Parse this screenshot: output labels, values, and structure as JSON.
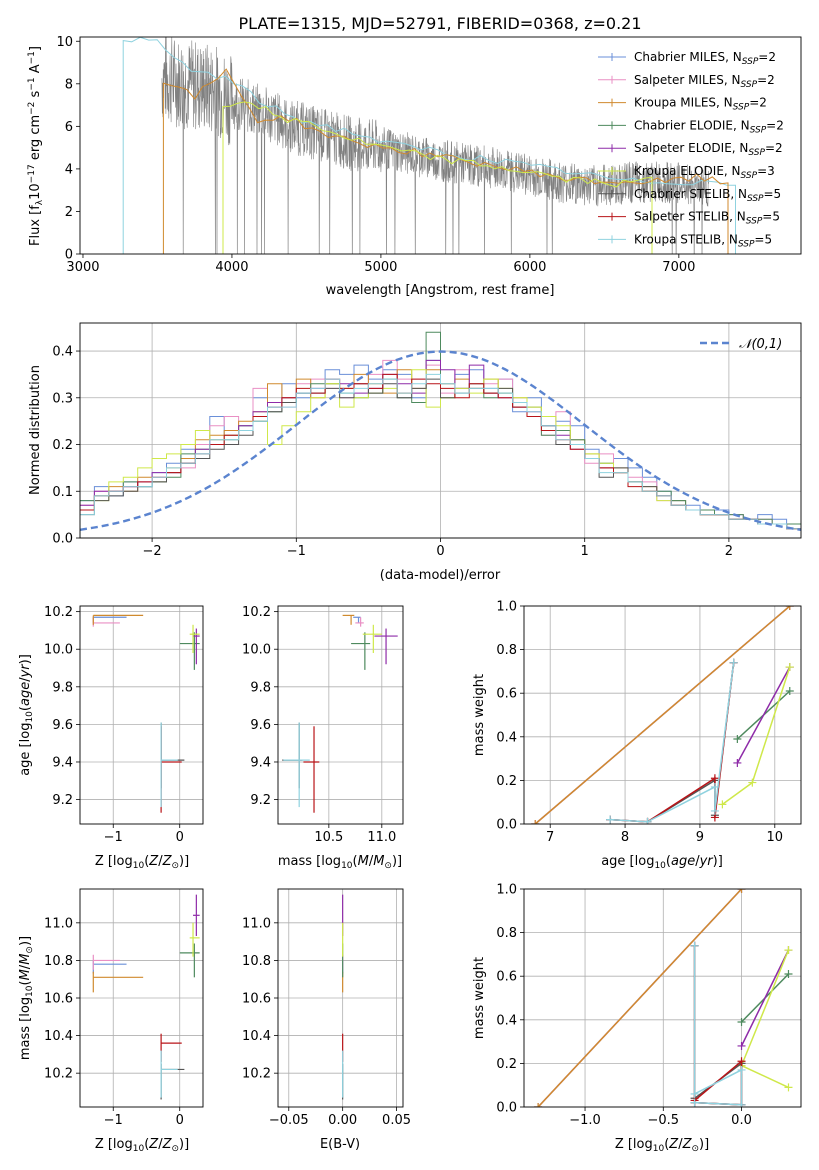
{
  "figure_title": "PLATE=1315, MJD=52791, FIBERID=0368, z=0.21",
  "colors": {
    "Chabrier MILES": "#6a8fd8",
    "Salpeter MILES": "#e98fc4",
    "Kroupa MILES": "#d08a2e",
    "Chabrier ELODIE": "#4e8a5e",
    "Salpeter ELODIE": "#8e2ba8",
    "Kroupa ELODIE": "#cfe84a",
    "Chabrier STELIB": "#555555",
    "Salpeter STELIB": "#b81418",
    "Kroupa STELIB": "#8fd2df",
    "data": "#808080",
    "gaussian": "#5b84cf",
    "grid": "#b0b0b0"
  },
  "chart_data": [
    {
      "type": "line",
      "panel": "spectrum",
      "title": "PLATE=1315, MJD=52791, FIBERID=0368, z=0.21",
      "xlabel": "wavelength [Angstrom, rest frame]",
      "ylabel": "Flux [f_λ10^-17 erg cm^-2 s^-1 A^-1]",
      "xlim": [
        2980,
        7820
      ],
      "ylim": [
        0,
        10.2
      ],
      "xticks": [
        3000,
        4000,
        5000,
        6000,
        7000
      ],
      "yticks": [
        0,
        2,
        4,
        6,
        8,
        10
      ],
      "legend_position": "top-right",
      "legend": [
        "Chabrier MILES, N_SSP=2",
        "Salpeter MILES, N_SSP=2",
        "Kroupa MILES, N_SSP=2",
        "Chabrier ELODIE, N_SSP=2",
        "Salpeter ELODIE, N_SSP=2",
        "Kroupa ELODIE, N_SSP=3",
        "Chabrier STELIB, N_SSP=5",
        "Salpeter STELIB, N_SSP=5",
        "Kroupa STELIB, N_SSP=5"
      ],
      "data_spectrum": {
        "x": [
          3530,
          3700,
          3900,
          4000,
          4200,
          4400,
          4600,
          4800,
          5000,
          5200,
          5400,
          5600,
          5800,
          6000,
          6200,
          6400,
          6600,
          6800,
          7000,
          7200
        ],
        "y": [
          8.3,
          8.0,
          7.7,
          7.2,
          6.7,
          6.0,
          5.6,
          5.2,
          5.0,
          4.7,
          4.4,
          4.2,
          4.0,
          3.7,
          3.4,
          3.2,
          3.3,
          3.4,
          3.3,
          3.2
        ]
      },
      "models": {
        "MILES": {
          "x_start": 3540,
          "x_end": 7330,
          "y": [
            8.2,
            7.4,
            8.6,
            6.3,
            6.4,
            5.7,
            5.3,
            5.0,
            4.8,
            4.5,
            4.3,
            4.0,
            3.8,
            3.5,
            3.4,
            3.4,
            3.4,
            3.6,
            3.3
          ]
        },
        "ELODIE": {
          "x_start": 3940,
          "x_end": 6820,
          "y": [
            7.0,
            7.2,
            6.3,
            6.2,
            5.6,
            5.2,
            4.9,
            4.6,
            4.4,
            4.2,
            4.0,
            3.8,
            3.5,
            3.4,
            3.3,
            3.5
          ]
        },
        "STELIB": {
          "x_start": 3270,
          "x_end": 7380,
          "y": [
            10.2,
            9.9,
            8.6,
            8.3,
            7.2,
            6.4,
            6.0,
            5.6,
            5.1,
            4.9,
            4.6,
            4.4,
            4.1,
            3.9,
            3.6,
            3.4,
            3.4,
            3.4,
            3.3
          ]
        }
      }
    },
    {
      "type": "line",
      "panel": "residuals",
      "xlabel": "(data-model)/error",
      "ylabel": "Normed distribution",
      "xlim": [
        -2.5,
        2.5
      ],
      "ylim": [
        0,
        0.46
      ],
      "xticks": [
        -2,
        -1,
        0,
        1,
        2
      ],
      "yticks": [
        0.0,
        0.1,
        0.2,
        0.3,
        0.4
      ],
      "legend_position": "top-right",
      "gaussian_label": "𝒩(0,1)",
      "bin_edges_start": -2.5,
      "bin_width": 0.1,
      "series": [
        {
          "name": "Chabrier MILES",
          "values": [
            0.08,
            0.11,
            0.09,
            0.12,
            0.11,
            0.14,
            0.16,
            0.19,
            0.18,
            0.26,
            0.22,
            0.24,
            0.3,
            0.28,
            0.33,
            0.3,
            0.31,
            0.36,
            0.35,
            0.37,
            0.34,
            0.36,
            0.35,
            0.3,
            0.38,
            0.33,
            0.35,
            0.36,
            0.32,
            0.34,
            0.27,
            0.3,
            0.26,
            0.25,
            0.24,
            0.19,
            0.16,
            0.17,
            0.15,
            0.13,
            0.1,
            0.08,
            0.07,
            0.06,
            0.06,
            0.05,
            0.04,
            0.05,
            0.04,
            0.03
          ]
        },
        {
          "name": "Salpeter MILES",
          "values": [
            0.07,
            0.1,
            0.1,
            0.11,
            0.12,
            0.13,
            0.14,
            0.15,
            0.2,
            0.24,
            0.26,
            0.23,
            0.32,
            0.29,
            0.28,
            0.33,
            0.34,
            0.32,
            0.3,
            0.33,
            0.35,
            0.38,
            0.34,
            0.34,
            0.37,
            0.31,
            0.36,
            0.33,
            0.33,
            0.34,
            0.29,
            0.28,
            0.22,
            0.27,
            0.2,
            0.16,
            0.18,
            0.14,
            0.13,
            0.12,
            0.08,
            0.07,
            0.06,
            0.06,
            0.05,
            0.05,
            0.04,
            0.04,
            0.03,
            0.03
          ]
        },
        {
          "name": "Kroupa MILES",
          "values": [
            0.06,
            0.09,
            0.11,
            0.1,
            0.13,
            0.12,
            0.15,
            0.17,
            0.21,
            0.22,
            0.23,
            0.25,
            0.27,
            0.33,
            0.3,
            0.34,
            0.3,
            0.33,
            0.32,
            0.35,
            0.33,
            0.31,
            0.36,
            0.32,
            0.36,
            0.33,
            0.34,
            0.32,
            0.34,
            0.31,
            0.3,
            0.26,
            0.24,
            0.23,
            0.21,
            0.18,
            0.15,
            0.15,
            0.12,
            0.11,
            0.09,
            0.08,
            0.06,
            0.05,
            0.05,
            0.04,
            0.04,
            0.03,
            0.03,
            0.03
          ]
        },
        {
          "name": "Chabrier ELODIE",
          "values": [
            0.08,
            0.09,
            0.1,
            0.12,
            0.11,
            0.12,
            0.13,
            0.18,
            0.19,
            0.2,
            0.21,
            0.24,
            0.26,
            0.27,
            0.29,
            0.31,
            0.33,
            0.33,
            0.31,
            0.3,
            0.31,
            0.34,
            0.3,
            0.29,
            0.44,
            0.3,
            0.32,
            0.33,
            0.3,
            0.31,
            0.29,
            0.28,
            0.22,
            0.23,
            0.21,
            0.17,
            0.16,
            0.14,
            0.12,
            0.1,
            0.1,
            0.08,
            0.06,
            0.06,
            0.05,
            0.05,
            0.04,
            0.04,
            0.03,
            0.03
          ]
        },
        {
          "name": "Salpeter ELODIE",
          "values": [
            0.07,
            0.1,
            0.1,
            0.11,
            0.12,
            0.14,
            0.14,
            0.16,
            0.19,
            0.21,
            0.22,
            0.24,
            0.27,
            0.29,
            0.3,
            0.31,
            0.32,
            0.34,
            0.33,
            0.31,
            0.32,
            0.35,
            0.33,
            0.31,
            0.38,
            0.36,
            0.32,
            0.37,
            0.31,
            0.3,
            0.28,
            0.27,
            0.24,
            0.22,
            0.19,
            0.17,
            0.15,
            0.14,
            0.12,
            0.1,
            0.09,
            0.07,
            0.06,
            0.05,
            0.05,
            0.04,
            0.04,
            0.03,
            0.03,
            0.02
          ]
        },
        {
          "name": "Kroupa ELODIE",
          "values": [
            0.06,
            0.08,
            0.12,
            0.13,
            0.15,
            0.17,
            0.18,
            0.2,
            0.23,
            0.21,
            0.22,
            0.23,
            0.25,
            0.2,
            0.24,
            0.27,
            0.3,
            0.33,
            0.28,
            0.3,
            0.31,
            0.32,
            0.31,
            0.36,
            0.28,
            0.3,
            0.32,
            0.31,
            0.34,
            0.32,
            0.3,
            0.28,
            0.26,
            0.24,
            0.2,
            0.18,
            0.16,
            0.14,
            0.12,
            0.1,
            0.08,
            0.07,
            0.06,
            0.05,
            0.05,
            0.04,
            0.04,
            0.03,
            0.03,
            0.02
          ]
        },
        {
          "name": "Chabrier STELIB",
          "values": [
            0.05,
            0.08,
            0.09,
            0.1,
            0.11,
            0.12,
            0.14,
            0.16,
            0.17,
            0.19,
            0.2,
            0.22,
            0.25,
            0.27,
            0.29,
            0.31,
            0.31,
            0.32,
            0.3,
            0.33,
            0.31,
            0.33,
            0.3,
            0.32,
            0.34,
            0.3,
            0.31,
            0.32,
            0.31,
            0.32,
            0.28,
            0.26,
            0.24,
            0.2,
            0.2,
            0.17,
            0.13,
            0.15,
            0.12,
            0.11,
            0.09,
            0.07,
            0.06,
            0.05,
            0.05,
            0.04,
            0.04,
            0.03,
            0.03,
            0.02
          ]
        },
        {
          "name": "Salpeter STELIB",
          "values": [
            0.06,
            0.09,
            0.1,
            0.11,
            0.12,
            0.13,
            0.14,
            0.16,
            0.18,
            0.2,
            0.22,
            0.23,
            0.26,
            0.28,
            0.3,
            0.32,
            0.31,
            0.34,
            0.32,
            0.33,
            0.32,
            0.35,
            0.31,
            0.34,
            0.33,
            0.32,
            0.3,
            0.33,
            0.31,
            0.3,
            0.28,
            0.26,
            0.23,
            0.21,
            0.19,
            0.17,
            0.15,
            0.14,
            0.11,
            0.1,
            0.09,
            0.07,
            0.06,
            0.05,
            0.05,
            0.04,
            0.04,
            0.03,
            0.03,
            0.02
          ]
        },
        {
          "name": "Kroupa STELIB",
          "values": [
            0.05,
            0.09,
            0.1,
            0.11,
            0.11,
            0.13,
            0.15,
            0.16,
            0.18,
            0.21,
            0.21,
            0.23,
            0.25,
            0.28,
            0.28,
            0.31,
            0.32,
            0.34,
            0.31,
            0.32,
            0.33,
            0.34,
            0.31,
            0.33,
            0.35,
            0.33,
            0.31,
            0.32,
            0.32,
            0.31,
            0.29,
            0.27,
            0.24,
            0.21,
            0.2,
            0.17,
            0.14,
            0.14,
            0.12,
            0.1,
            0.09,
            0.07,
            0.06,
            0.05,
            0.05,
            0.04,
            0.04,
            0.03,
            0.03,
            0.02
          ]
        }
      ]
    },
    {
      "type": "scatter",
      "panel": "Z-age",
      "xlabel": "Z [log10(Z/Z⊙)]",
      "ylabel": "age [log10(age/yr)]",
      "xlim": [
        -1.5,
        0.35
      ],
      "ylim": [
        9.07,
        10.23
      ],
      "xticks": [
        -1,
        0
      ],
      "yticks": [
        9.2,
        9.4,
        9.6,
        9.8,
        10.0,
        10.2
      ]
    },
    {
      "type": "scatter",
      "panel": "mass-age",
      "xlabel": "mass [log10(M/M⊙)]",
      "ylabel": "",
      "xlim": [
        10.02,
        11.2
      ],
      "ylim": [
        9.07,
        10.23
      ],
      "xticks": [
        10.5,
        11.0
      ],
      "yticks": [
        9.2,
        9.4,
        9.6,
        9.8,
        10.0,
        10.2
      ]
    },
    {
      "type": "line",
      "panel": "age-weight",
      "xlabel": "age  [log10(age/yr)]",
      "ylabel": "mass weight",
      "xlim": [
        6.65,
        10.35
      ],
      "ylim": [
        0,
        1.0
      ],
      "xticks": [
        7,
        8,
        9,
        10
      ],
      "yticks": [
        0.0,
        0.2,
        0.4,
        0.6,
        0.8,
        1.0
      ]
    },
    {
      "type": "scatter",
      "panel": "Z-mass",
      "xlabel": "Z [log10(Z/Z⊙)]",
      "ylabel": "mass [log10(M/M⊙)]",
      "xlim": [
        -1.5,
        0.35
      ],
      "ylim": [
        10.02,
        11.18
      ],
      "xticks": [
        -1,
        0
      ],
      "yticks": [
        10.2,
        10.4,
        10.6,
        10.8,
        11.0
      ]
    },
    {
      "type": "scatter",
      "panel": "EBV-mass",
      "xlabel": "E(B-V)",
      "ylabel": "",
      "xlim": [
        -0.06,
        0.056
      ],
      "ylim": [
        10.02,
        11.18
      ],
      "xticks": [
        -0.05,
        0.0,
        0.05
      ],
      "yticks": [
        10.2,
        10.4,
        10.6,
        10.8,
        11.0
      ]
    },
    {
      "type": "line",
      "panel": "Z-weight",
      "xlabel": "Z [log10(Z/Z⊙)]",
      "ylabel": "mass weight",
      "xlim": [
        -1.39,
        0.38
      ],
      "ylim": [
        0,
        1.0
      ],
      "xticks": [
        -1.0,
        -0.5,
        0.0
      ],
      "yticks": [
        0.0,
        0.2,
        0.4,
        0.6,
        0.8,
        1.0
      ]
    }
  ],
  "scatter_points": [
    {
      "model": "Chabrier MILES",
      "Z": -1.3,
      "Zerr": [
        0.0,
        0.5
      ],
      "age": 10.17,
      "ageerr": [
        0.03,
        0.0
      ],
      "mass": 10.78,
      "masserr": [
        0.05,
        0.02
      ],
      "ebv": 0.0
    },
    {
      "model": "Salpeter MILES",
      "Z": -1.3,
      "Zerr": [
        0.0,
        0.4
      ],
      "age": 10.14,
      "ageerr": [
        0.02,
        0.03
      ],
      "mass": 10.8,
      "masserr": [
        0.05,
        0.03
      ],
      "ebv": 0.0
    },
    {
      "model": "Kroupa MILES",
      "Z": -1.3,
      "Zerr": [
        0.0,
        0.75
      ],
      "age": 10.18,
      "ageerr": [
        0.05,
        0.0
      ],
      "mass": 10.71,
      "masserr": [
        0.08,
        0.03
      ],
      "ebv": 0.0
    },
    {
      "model": "Chabrier ELODIE",
      "Z": 0.22,
      "Zerr": [
        0.22,
        0.08
      ],
      "age": 10.03,
      "ageerr": [
        0.14,
        0.06
      ],
      "mass": 10.84,
      "masserr": [
        0.13,
        0.05
      ],
      "ebv": 0.0
    },
    {
      "model": "Salpeter ELODIE",
      "Z": 0.25,
      "Zerr": [
        0.05,
        0.05
      ],
      "age": 10.07,
      "ageerr": [
        0.15,
        0.04
      ],
      "mass": 11.04,
      "masserr": [
        0.11,
        0.11
      ],
      "ebv": 0.0
    },
    {
      "model": "Kroupa ELODIE",
      "Z": 0.2,
      "Zerr": [
        0.05,
        0.1
      ],
      "age": 10.08,
      "ageerr": [
        0.1,
        0.05
      ],
      "mass": 10.92,
      "masserr": [
        0.1,
        0.08
      ],
      "ebv": 0.0
    },
    {
      "model": "Chabrier STELIB",
      "Z": -0.28,
      "Zerr": [
        0.0,
        0.35
      ],
      "age": 9.41,
      "ageerr": [
        0.15,
        0.2
      ],
      "mass": 10.22,
      "masserr": [
        0.16,
        0.03
      ],
      "ebv": 0.0
    },
    {
      "model": "Salpeter STELIB",
      "Z": -0.28,
      "Zerr": [
        0.0,
        0.31
      ],
      "age": 9.4,
      "ageerr": [
        0.27,
        0.19
      ],
      "mass": 10.36,
      "masserr": [
        0.1,
        0.05
      ],
      "ebv": 0.0
    },
    {
      "model": "Kroupa STELIB",
      "Z": -0.28,
      "Zerr": [
        0.0,
        0.25
      ],
      "age": 9.41,
      "ageerr": [
        0.25,
        0.2
      ],
      "mass": 10.22,
      "masserr": [
        0.15,
        0.1
      ],
      "ebv": 0.0
    }
  ],
  "weight_lines": [
    {
      "model": "Chabrier MILES",
      "age": [
        6.8,
        10.2
      ],
      "Z": [
        -1.3,
        0.0
      ],
      "w": [
        0.0,
        1.0
      ]
    },
    {
      "model": "Salpeter MILES",
      "age": [
        6.8,
        10.2
      ],
      "Z": [
        -1.3,
        0.0
      ],
      "w": [
        0.0,
        1.0
      ]
    },
    {
      "model": "Kroupa MILES",
      "age": [
        6.8,
        10.2
      ],
      "Z": [
        -1.3,
        0.0
      ],
      "w": [
        0.0,
        1.0
      ]
    },
    {
      "model": "Chabrier ELODIE",
      "age": [
        9.5,
        10.2
      ],
      "Z": [
        0.0,
        0.3
      ],
      "w": [
        0.39,
        0.61
      ]
    },
    {
      "model": "Salpeter ELODIE",
      "age": [
        9.5,
        10.2
      ],
      "Z": [
        0.0,
        0.3
      ],
      "w": [
        0.28,
        0.72
      ]
    },
    {
      "model": "Kroupa ELODIE",
      "age": [
        9.3,
        9.7,
        10.2
      ],
      "Z": [
        0.3,
        0.0,
        0.3
      ],
      "w": [
        0.09,
        0.19,
        0.72
      ]
    },
    {
      "model": "Chabrier STELIB",
      "age": [
        7.8,
        8.3,
        9.2,
        9.2,
        9.45
      ],
      "Z": [
        -0.3,
        0.0,
        0.0,
        -0.3,
        -0.3
      ],
      "w": [
        0.02,
        0.01,
        0.2,
        0.04,
        0.74
      ]
    },
    {
      "model": "Salpeter STELIB",
      "age": [
        7.8,
        8.3,
        9.2,
        9.2,
        9.45
      ],
      "Z": [
        -0.3,
        0.0,
        0.0,
        -0.3,
        -0.3
      ],
      "w": [
        0.02,
        0.01,
        0.21,
        0.03,
        0.74
      ]
    },
    {
      "model": "Kroupa STELIB",
      "age": [
        7.8,
        8.3,
        9.2,
        9.2,
        9.45
      ],
      "Z": [
        -0.3,
        0.0,
        0.0,
        -0.3,
        -0.3
      ],
      "w": [
        0.02,
        0.01,
        0.17,
        0.06,
        0.74
      ]
    }
  ]
}
